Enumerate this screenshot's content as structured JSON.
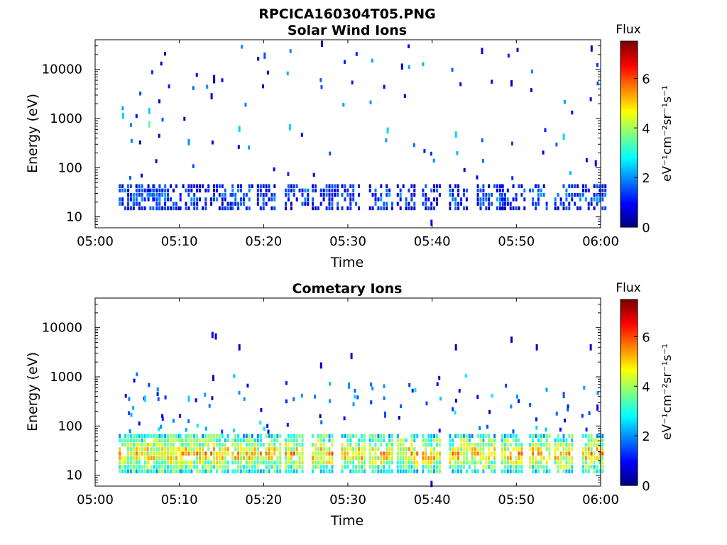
{
  "figure": {
    "title": "RPCICA160304T05.PNG"
  },
  "chart_data": [
    {
      "type": "heatmap",
      "title": "Solar Wind Ions",
      "xlabel": "Time",
      "ylabel": "Energy (eV)",
      "xlim": [
        "05:00",
        "06:00"
      ],
      "xticks": [
        "05:00",
        "05:10",
        "05:20",
        "05:30",
        "05:40",
        "05:50",
        "06:00"
      ],
      "ylim": [
        6,
        40000
      ],
      "yscale": "log",
      "yticks": [
        "10",
        "100",
        "1000",
        "10000"
      ],
      "colorbar": {
        "label": "Flux",
        "units": "eV⁻¹cm⁻²sr⁻¹s⁻¹",
        "range": [
          0,
          7.5
        ],
        "ticks": [
          "0",
          "2",
          "4",
          "6"
        ],
        "colormap": "jet"
      },
      "scan_times_min": [
        3.8,
        4.8,
        7.2,
        8.2,
        11.0,
        14.0,
        17.2,
        20.2,
        23.5,
        26.7,
        30.2,
        33.5,
        36.8,
        39.8,
        43.0,
        46.3,
        49.2,
        52.5,
        55.5,
        58.8
      ],
      "data_summary": "Low-level solar wind ion fluxes mostly between ~15 and ~45 eV in periodic bursts, plus sparse scattered pixels up to ~40000 eV",
      "band": {
        "energy_range_eV": [
          15,
          45
        ],
        "typical_flux": 1.5,
        "max_flux": 3.0
      },
      "sparse_points": [
        {
          "t": 3.2,
          "e": 1200,
          "v": 2.5
        },
        {
          "t": 6.3,
          "e": 800,
          "v": 3.5
        },
        {
          "t": 6.3,
          "e": 1500,
          "v": 2.5
        },
        {
          "t": 11.0,
          "e": 350,
          "v": 2.0
        },
        {
          "t": 13.7,
          "e": 3000,
          "v": 0.5
        },
        {
          "t": 14.0,
          "e": 7000,
          "v": 0.5
        },
        {
          "t": 17.0,
          "e": 650,
          "v": 2.5
        },
        {
          "t": 20.0,
          "e": 20000,
          "v": 1.5
        },
        {
          "t": 23.0,
          "e": 700,
          "v": 2.5
        },
        {
          "t": 26.8,
          "e": 35000,
          "v": 0.5
        },
        {
          "t": 34.6,
          "e": 600,
          "v": 2.5
        },
        {
          "t": 36.3,
          "e": 12000,
          "v": 0.5
        },
        {
          "t": 39.8,
          "e": 8,
          "v": 0.8
        },
        {
          "t": 42.7,
          "e": 500,
          "v": 2.5
        },
        {
          "t": 45.8,
          "e": 25000,
          "v": 0.8
        },
        {
          "t": 49.3,
          "e": 5500,
          "v": 0.5
        },
        {
          "t": 55.5,
          "e": 450,
          "v": 2.5
        },
        {
          "t": 58.8,
          "e": 28000,
          "v": 0.5
        },
        {
          "t": 59.3,
          "e": 130,
          "v": 0.8
        }
      ]
    },
    {
      "type": "heatmap",
      "title": "Cometary Ions",
      "xlabel": "Time",
      "ylabel": "Energy (eV)",
      "xlim": [
        "05:00",
        "06:00"
      ],
      "xticks": [
        "05:00",
        "05:10",
        "05:20",
        "05:30",
        "05:40",
        "05:50",
        "06:00"
      ],
      "ylim": [
        6,
        40000
      ],
      "yscale": "log",
      "yticks": [
        "10",
        "100",
        "1000",
        "10000"
      ],
      "colorbar": {
        "label": "Flux",
        "units": "eV⁻¹cm⁻²sr⁻¹s⁻¹",
        "range": [
          0,
          7.5
        ],
        "ticks": [
          "0",
          "2",
          "4",
          "6"
        ],
        "colormap": "jet"
      },
      "scan_times_min": [
        3.8,
        4.8,
        7.2,
        8.2,
        11.0,
        14.0,
        17.2,
        20.2,
        23.5,
        26.7,
        30.2,
        33.5,
        36.8,
        39.8,
        43.0,
        46.3,
        49.2,
        52.5,
        55.5,
        58.8
      ],
      "data_summary": "Strong cometary ion fluxes between ~12 and ~60 eV in periodic bursts peaking near 25 eV, with sparse pixels up to ~8000 eV",
      "band": {
        "energy_range_eV": [
          12,
          60
        ],
        "typical_flux": 5.0,
        "max_flux": 6.5
      },
      "sparse_points": [
        {
          "t": 13.8,
          "e": 7500,
          "v": 0.8
        },
        {
          "t": 14.2,
          "e": 7000,
          "v": 0.5
        },
        {
          "t": 13.9,
          "e": 1000,
          "v": 0.5
        },
        {
          "t": 17.0,
          "e": 4200,
          "v": 0.5
        },
        {
          "t": 26.7,
          "e": 1800,
          "v": 0.5
        },
        {
          "t": 30.3,
          "e": 2800,
          "v": 0.5
        },
        {
          "t": 30.0,
          "e": 700,
          "v": 2.0
        },
        {
          "t": 34.3,
          "e": 180,
          "v": 1.5
        },
        {
          "t": 39.8,
          "e": 7,
          "v": 1.0
        },
        {
          "t": 42.7,
          "e": 4200,
          "v": 0.5
        },
        {
          "t": 49.3,
          "e": 6000,
          "v": 0.5
        },
        {
          "t": 52.3,
          "e": 4200,
          "v": 0.5
        },
        {
          "t": 55.5,
          "e": 450,
          "v": 1.5
        },
        {
          "t": 58.7,
          "e": 4200,
          "v": 0.5
        },
        {
          "t": 59.5,
          "e": 250,
          "v": 1.0
        },
        {
          "t": 5.8,
          "e": 380,
          "v": 2.5
        },
        {
          "t": 11.0,
          "e": 380,
          "v": 2.5
        }
      ]
    }
  ]
}
